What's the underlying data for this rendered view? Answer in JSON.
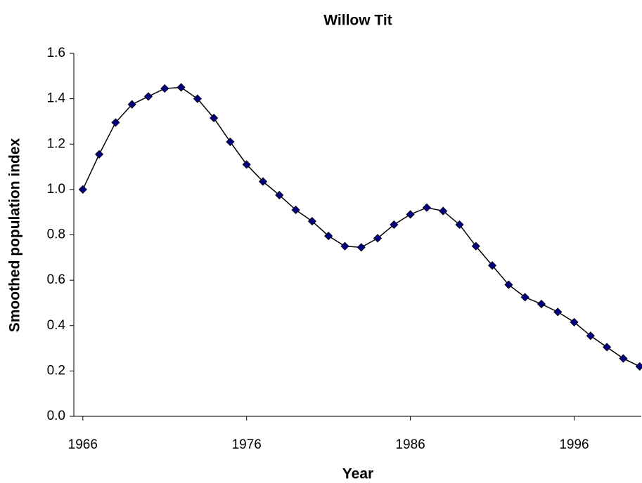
{
  "chart_data": {
    "type": "line",
    "title": "Willow Tit",
    "x_label": "Year",
    "y_label": "Smoothed population index",
    "x": [
      1966,
      1967,
      1968,
      1969,
      1970,
      1971,
      1972,
      1973,
      1974,
      1975,
      1976,
      1977,
      1978,
      1979,
      1980,
      1981,
      1982,
      1983,
      1984,
      1985,
      1986,
      1987,
      1988,
      1989,
      1990,
      1991,
      1992,
      1993,
      1994,
      1995,
      1996,
      1997,
      1998,
      1999,
      2000
    ],
    "series": [
      {
        "name": "Willow Tit",
        "color": "#000080",
        "line_color": "#000000",
        "values": [
          1.0,
          1.155,
          1.295,
          1.375,
          1.41,
          1.445,
          1.45,
          1.4,
          1.315,
          1.21,
          1.11,
          1.035,
          0.975,
          0.91,
          0.86,
          0.795,
          0.75,
          0.745,
          0.785,
          0.845,
          0.89,
          0.92,
          0.905,
          0.845,
          0.75,
          0.665,
          0.58,
          0.525,
          0.495,
          0.46,
          0.415,
          0.355,
          0.305,
          0.255,
          0.22
        ]
      }
    ],
    "xlim": [
      1965.45,
      2000.1
    ],
    "xticks": [
      1966,
      1976,
      1986,
      1996
    ],
    "ylim": [
      0,
      1.6
    ],
    "yticks": [
      {
        "value": 0,
        "label": "0.0"
      },
      {
        "value": 0.2,
        "label": "0.2"
      },
      {
        "value": 0.4,
        "label": "0.4"
      },
      {
        "value": 0.6,
        "label": "0.6"
      },
      {
        "value": 0.8,
        "label": "0.8"
      },
      {
        "value": 1.0,
        "label": "1.0"
      },
      {
        "value": 1.2,
        "label": "1.2"
      },
      {
        "value": 1.4,
        "label": "1.4"
      },
      {
        "value": 1.6,
        "label": "1.6"
      }
    ]
  }
}
